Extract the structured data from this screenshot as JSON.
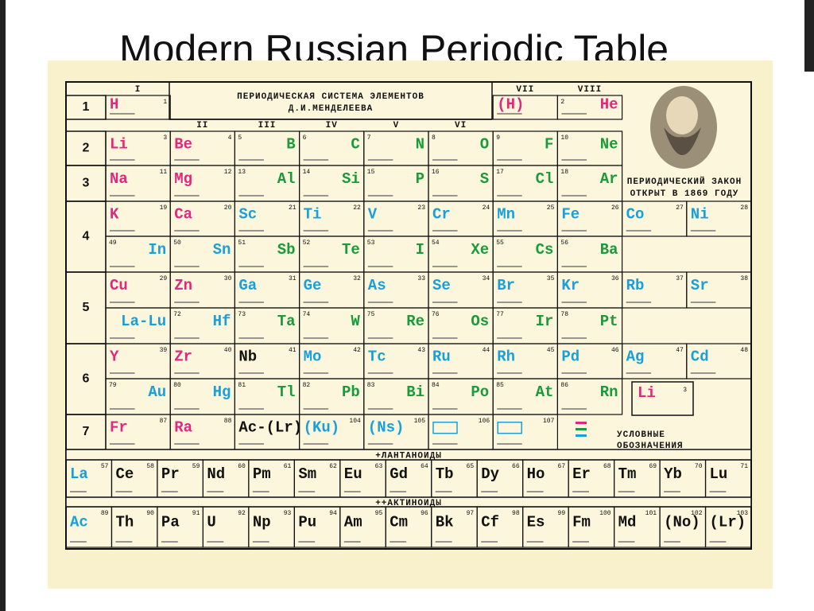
{
  "title": "Modern Russian Periodic Table",
  "table": {
    "heading": [
      "ПЕРИОДИЧЕСКАЯ СИСТЕМА ЭЛЕМЕНТОВ",
      "Д.И.МЕНДЕЛЕЕВА"
    ],
    "groups": [
      "I",
      "II",
      "III",
      "IV",
      "V",
      "VI",
      "VII",
      "VIII"
    ],
    "periods": [
      1,
      2,
      3,
      4,
      5,
      6,
      7
    ],
    "elements": [
      {
        "symbol": "H",
        "number": 1
      },
      {
        "symbol": "(H)"
      },
      {
        "symbol": "He",
        "number": 2
      },
      {
        "symbol": "Li",
        "number": 3
      },
      {
        "symbol": "Be",
        "number": 4
      },
      {
        "symbol": "B",
        "number": 5
      },
      {
        "symbol": "C",
        "number": 6
      },
      {
        "symbol": "N",
        "number": 7
      },
      {
        "symbol": "O",
        "number": 8
      },
      {
        "symbol": "F",
        "number": 9
      },
      {
        "symbol": "Ne",
        "number": 10
      },
      {
        "symbol": "Na",
        "number": 11
      },
      {
        "symbol": "Mg",
        "number": 12
      },
      {
        "symbol": "Al",
        "number": 13
      },
      {
        "symbol": "Si",
        "number": 14
      },
      {
        "symbol": "P",
        "number": 15
      },
      {
        "symbol": "S",
        "number": 16
      },
      {
        "symbol": "Cl",
        "number": 17
      },
      {
        "symbol": "Ar",
        "number": 18
      },
      {
        "symbol": "K",
        "number": 19
      },
      {
        "symbol": "Ca",
        "number": 20
      },
      {
        "symbol": "Sc",
        "number": 21
      },
      {
        "symbol": "Ti",
        "number": 22
      },
      {
        "symbol": "V",
        "number": 23
      },
      {
        "symbol": "Cr",
        "number": 24
      },
      {
        "symbol": "Mn",
        "number": 25
      },
      {
        "symbol": "Fe",
        "number": 26
      },
      {
        "symbol": "Co",
        "number": 27
      },
      {
        "symbol": "Ni",
        "number": 28
      },
      {
        "symbol": "Cu",
        "number": 29
      },
      {
        "symbol": "Zn",
        "number": 30
      },
      {
        "symbol": "Ga",
        "number": 31
      },
      {
        "symbol": "Ge",
        "number": 32
      },
      {
        "symbol": "As",
        "number": 33
      },
      {
        "symbol": "Se",
        "number": 34
      },
      {
        "symbol": "Br",
        "number": 35
      },
      {
        "symbol": "Kr",
        "number": 36
      },
      {
        "symbol": "Rb",
        "number": 37
      },
      {
        "symbol": "Sr",
        "number": 38
      },
      {
        "symbol": "Y",
        "number": 39
      },
      {
        "symbol": "Zr",
        "number": 40
      },
      {
        "symbol": "Nb",
        "number": 41
      },
      {
        "symbol": "Mo",
        "number": 42
      },
      {
        "symbol": "Tc",
        "number": 43
      },
      {
        "symbol": "Ru",
        "number": 44
      },
      {
        "symbol": "Rh",
        "number": 45
      },
      {
        "symbol": "Pd",
        "number": 46
      },
      {
        "symbol": "Ag",
        "number": 47
      },
      {
        "symbol": "Cd",
        "number": 48
      },
      {
        "symbol": "In",
        "number": 49
      },
      {
        "symbol": "Sn",
        "number": 50
      },
      {
        "symbol": "Sb",
        "number": 51
      },
      {
        "symbol": "Te",
        "number": 52
      },
      {
        "symbol": "I",
        "number": 53
      },
      {
        "symbol": "Xe",
        "number": 54
      },
      {
        "symbol": "Cs",
        "number": 55
      },
      {
        "symbol": "Ba",
        "number": 56
      },
      {
        "symbol": "La-Lu"
      },
      {
        "symbol": "Hf",
        "number": 72
      },
      {
        "symbol": "Ta",
        "number": 73
      },
      {
        "symbol": "W",
        "number": 74
      },
      {
        "symbol": "Re",
        "number": 75
      },
      {
        "symbol": "Os",
        "number": 76
      },
      {
        "symbol": "Ir",
        "number": 77
      },
      {
        "symbol": "Pt",
        "number": 78
      },
      {
        "symbol": "Au",
        "number": 79
      },
      {
        "symbol": "Hg",
        "number": 80
      },
      {
        "symbol": "Tl",
        "number": 81
      },
      {
        "symbol": "Pb",
        "number": 82
      },
      {
        "symbol": "Bi",
        "number": 83
      },
      {
        "symbol": "Po",
        "number": 84
      },
      {
        "symbol": "At",
        "number": 85
      },
      {
        "symbol": "Rn",
        "number": 86
      },
      {
        "symbol": "Fr",
        "number": 87
      },
      {
        "symbol": "Ra",
        "number": 88
      },
      {
        "symbol": "Ac-(Lr)"
      },
      {
        "symbol": "(Ku)",
        "number": 104
      },
      {
        "symbol": "(Ns)",
        "number": 105
      },
      {
        "number": 106
      },
      {
        "number": 107
      }
    ],
    "lanthanides_label": "+ЛАНТАНОИДЫ",
    "lanthanides": [
      {
        "symbol": "La",
        "number": 57
      },
      {
        "symbol": "Ce",
        "number": 58
      },
      {
        "symbol": "Pr",
        "number": 59
      },
      {
        "symbol": "Nd",
        "number": 60
      },
      {
        "symbol": "Pm",
        "number": 61
      },
      {
        "symbol": "Sm",
        "number": 62
      },
      {
        "symbol": "Eu",
        "number": 63
      },
      {
        "symbol": "Gd",
        "number": 64
      },
      {
        "symbol": "Tb",
        "number": 65
      },
      {
        "symbol": "Dy",
        "number": 66
      },
      {
        "symbol": "Ho",
        "number": 67
      },
      {
        "symbol": "Er",
        "number": 68
      },
      {
        "symbol": "Tm",
        "number": 69
      },
      {
        "symbol": "Yb",
        "number": 70
      },
      {
        "symbol": "Lu",
        "number": 71
      }
    ],
    "actinides_label": "++АКТИНОИДЫ",
    "actinides": [
      {
        "symbol": "Ac",
        "number": 89
      },
      {
        "symbol": "Th",
        "number": 90
      },
      {
        "symbol": "Pa",
        "number": 91
      },
      {
        "symbol": "U",
        "number": 92
      },
      {
        "symbol": "Np",
        "number": 93
      },
      {
        "symbol": "Pu",
        "number": 94
      },
      {
        "symbol": "Am",
        "number": 95
      },
      {
        "symbol": "Cm",
        "number": 96
      },
      {
        "symbol": "Bk",
        "number": 97
      },
      {
        "symbol": "Cf",
        "number": 98
      },
      {
        "symbol": "Es",
        "number": 99
      },
      {
        "symbol": "Fm",
        "number": 100
      },
      {
        "symbol": "Md",
        "number": 101
      },
      {
        "symbol": "(No)",
        "number": 102
      },
      {
        "symbol": "(Lr)",
        "number": 103
      }
    ]
  },
  "portrait_caption": [
    "ПЕРИОДИЧЕСКИЙ ЗАКОН",
    "ОТКРЫТ В 1869 ГОДУ"
  ],
  "legend": {
    "sample": {
      "symbol": "Li",
      "number": 3
    },
    "label": [
      "УСЛОВНЫЕ",
      "ОБОЗНАЧЕНИЯ"
    ]
  }
}
